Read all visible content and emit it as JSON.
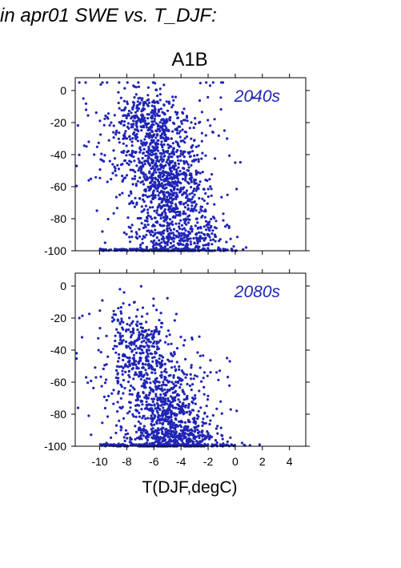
{
  "figure": {
    "title": "in apr01 SWE vs. T_DJF:",
    "scenario": "A1B"
  },
  "colors": {
    "points": "#1f24b4",
    "axes": "#000000"
  },
  "chart_data": [
    {
      "type": "scatter",
      "panel_label": "2040s",
      "title": "A1B",
      "xlabel": "",
      "ylabel": "",
      "xlim": [
        -11.8,
        5.2
      ],
      "ylim": [
        -100,
        8
      ],
      "xticks": [
        -10,
        -8,
        -6,
        -4,
        -2,
        0,
        2,
        4
      ],
      "yticks": [
        0,
        -20,
        -40,
        -60,
        -80,
        -100
      ],
      "yticklabels": [
        "0",
        "-20",
        "-40",
        "-60",
        "-80",
        "-100"
      ],
      "xticklabels_shown": false,
      "grid": false,
      "clusters": [
        {
          "cx": -6.5,
          "cy": -20,
          "sx": 1.2,
          "sy": 10,
          "n": 300
        },
        {
          "cx": -5.5,
          "cy": -45,
          "sx": 1.3,
          "sy": 15,
          "n": 420
        },
        {
          "cx": -4.5,
          "cy": -70,
          "sx": 1.4,
          "sy": 15,
          "n": 440
        },
        {
          "cx": -4.0,
          "cy": -92,
          "sx": 2.0,
          "sy": 7,
          "n": 250
        },
        {
          "cx": -8.8,
          "cy": -30,
          "sx": 1.4,
          "sy": 25,
          "n": 80
        },
        {
          "cx": -2.8,
          "cy": -40,
          "sx": 1.3,
          "sy": 25,
          "n": 90
        }
      ],
      "floor_points": {
        "xmin": -10.0,
        "xmax": 0.5,
        "y": -100,
        "n": 180
      },
      "outliers": [
        {
          "x": -11.2,
          "y": -5
        },
        {
          "x": -11.0,
          "y": -12
        },
        {
          "x": -10.8,
          "y": -32
        },
        {
          "x": -10.4,
          "y": -40
        },
        {
          "x": -10.2,
          "y": -75
        },
        {
          "x": -9.8,
          "y": -88
        },
        {
          "x": -9.6,
          "y": -95
        },
        {
          "x": -7.5,
          "y": 3
        },
        {
          "x": -0.8,
          "y": -25
        },
        {
          "x": -0.6,
          "y": -30
        },
        {
          "x": 0.0,
          "y": -45
        },
        {
          "x": 0.0,
          "y": -100
        },
        {
          "x": 0.8,
          "y": -98
        },
        {
          "x": -1.5,
          "y": -90
        }
      ]
    },
    {
      "type": "scatter",
      "panel_label": "2080s",
      "title": "",
      "xlabel": "T(DJF,degC)",
      "ylabel": "",
      "xlim": [
        -11.8,
        5.2
      ],
      "ylim": [
        -100,
        8
      ],
      "xticks": [
        -10,
        -8,
        -6,
        -4,
        -2,
        0,
        2,
        4
      ],
      "xticklabels": [
        "-10",
        "-8",
        "-6",
        "-4",
        "-2",
        "0",
        "2",
        "4"
      ],
      "yticks": [
        0,
        -20,
        -40,
        -60,
        -80,
        -100
      ],
      "yticklabels": [
        "0",
        "-20",
        "-40",
        "-60",
        "-80",
        "-100"
      ],
      "xticklabels_shown": true,
      "grid": false,
      "clusters": [
        {
          "cx": -7.3,
          "cy": -30,
          "sx": 1.1,
          "sy": 12,
          "n": 160
        },
        {
          "cx": -6.2,
          "cy": -55,
          "sx": 1.3,
          "sy": 15,
          "n": 300
        },
        {
          "cx": -5.0,
          "cy": -80,
          "sx": 1.3,
          "sy": 12,
          "n": 380
        },
        {
          "cx": -4.5,
          "cy": -95,
          "sx": 1.8,
          "sy": 4,
          "n": 320
        },
        {
          "cx": -9.0,
          "cy": -55,
          "sx": 1.3,
          "sy": 22,
          "n": 60
        },
        {
          "cx": -2.8,
          "cy": -70,
          "sx": 1.2,
          "sy": 18,
          "n": 60
        }
      ],
      "floor_points": {
        "xmin": -10.0,
        "xmax": 1.2,
        "y": -100,
        "n": 160
      },
      "outliers": [
        {
          "x": -11.5,
          "y": -20
        },
        {
          "x": -11.3,
          "y": -32
        },
        {
          "x": -11.0,
          "y": -57
        },
        {
          "x": -10.8,
          "y": -81
        },
        {
          "x": -9.5,
          "y": -98
        },
        {
          "x": -8.5,
          "y": -2
        },
        {
          "x": -8.2,
          "y": -4
        },
        {
          "x": -9.8,
          "y": -9
        },
        {
          "x": -0.6,
          "y": -45
        },
        {
          "x": -0.4,
          "y": -47
        },
        {
          "x": 1.8,
          "y": -99
        },
        {
          "x": 0.5,
          "y": -98
        },
        {
          "x": -3.8,
          "y": -37
        }
      ]
    }
  ]
}
